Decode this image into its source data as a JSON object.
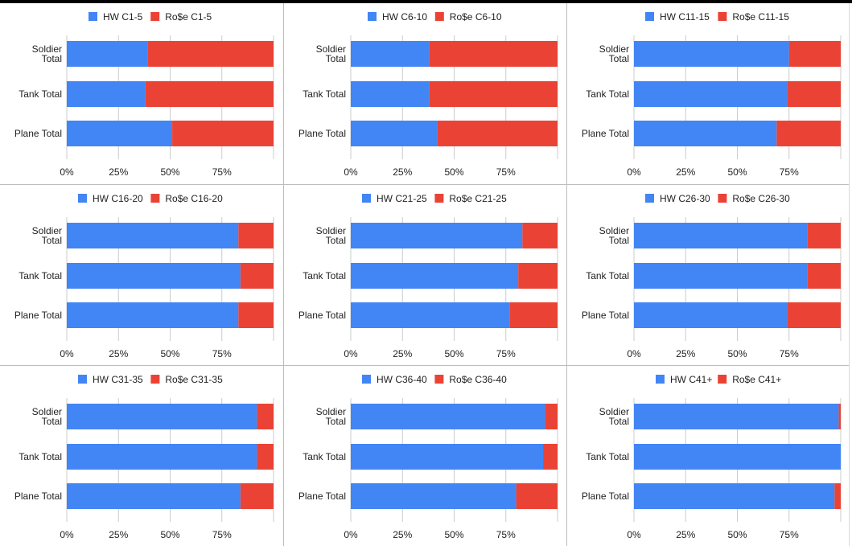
{
  "colors": {
    "hw": "#4285f4",
    "rose": "#ea4335",
    "grid": "#cccccc",
    "axis_text": "#222222"
  },
  "chart_data": [
    {
      "type": "bar",
      "orientation": "horizontal",
      "stacked": "percent",
      "legend": "top",
      "categories": [
        "Soldier Total",
        "Tank Total",
        "Plane Total"
      ],
      "xticks": [
        "0%",
        "25%",
        "50%",
        "75%"
      ],
      "series": [
        {
          "name": "HW C1-5",
          "values": [
            39,
            38,
            51
          ]
        },
        {
          "name": "Ro$e C1-5",
          "values": [
            61,
            62,
            49
          ]
        }
      ]
    },
    {
      "type": "bar",
      "orientation": "horizontal",
      "stacked": "percent",
      "legend": "top",
      "categories": [
        "Soldier Total",
        "Tank Total",
        "Plane Total"
      ],
      "xticks": [
        "0%",
        "25%",
        "50%",
        "75%"
      ],
      "series": [
        {
          "name": "HW C6-10",
          "values": [
            38,
            38,
            42
          ]
        },
        {
          "name": "Ro$e C6-10",
          "values": [
            62,
            62,
            58
          ]
        }
      ]
    },
    {
      "type": "bar",
      "orientation": "horizontal",
      "stacked": "percent",
      "legend": "top",
      "categories": [
        "Soldier Total",
        "Tank Total",
        "Plane Total"
      ],
      "xticks": [
        "0%",
        "25%",
        "50%",
        "75%"
      ],
      "series": [
        {
          "name": "HW C11-15",
          "values": [
            75,
            74,
            69
          ]
        },
        {
          "name": "Ro$e C11-15",
          "values": [
            25,
            26,
            31
          ]
        }
      ]
    },
    {
      "type": "bar",
      "orientation": "horizontal",
      "stacked": "percent",
      "legend": "top",
      "categories": [
        "Soldier Total",
        "Tank Total",
        "Plane Total"
      ],
      "xticks": [
        "0%",
        "25%",
        "50%",
        "75%"
      ],
      "series": [
        {
          "name": "HW C16-20",
          "values": [
            83,
            84,
            83
          ]
        },
        {
          "name": "Ro$e C16-20",
          "values": [
            17,
            16,
            17
          ]
        }
      ]
    },
    {
      "type": "bar",
      "orientation": "horizontal",
      "stacked": "percent",
      "legend": "top",
      "categories": [
        "Soldier Total",
        "Tank Total",
        "Plane Total"
      ],
      "xticks": [
        "0%",
        "25%",
        "50%",
        "75%"
      ],
      "series": [
        {
          "name": "HW C21-25",
          "values": [
            83,
            81,
            77
          ]
        },
        {
          "name": "Ro$e C21-25",
          "values": [
            17,
            19,
            23
          ]
        }
      ]
    },
    {
      "type": "bar",
      "orientation": "horizontal",
      "stacked": "percent",
      "legend": "top",
      "categories": [
        "Soldier Total",
        "Tank Total",
        "Plane Total"
      ],
      "xticks": [
        "0%",
        "25%",
        "50%",
        "75%"
      ],
      "series": [
        {
          "name": "HW C26-30",
          "values": [
            84,
            84,
            74
          ]
        },
        {
          "name": "Ro$e C26-30",
          "values": [
            16,
            16,
            26
          ]
        }
      ]
    },
    {
      "type": "bar",
      "orientation": "horizontal",
      "stacked": "percent",
      "legend": "top",
      "categories": [
        "Soldier Total",
        "Tank Total",
        "Plane Total"
      ],
      "xticks": [
        "0%",
        "25%",
        "50%",
        "75%"
      ],
      "series": [
        {
          "name": "HW C31-35",
          "values": [
            92,
            92,
            84
          ]
        },
        {
          "name": "Ro$e C31-35",
          "values": [
            8,
            8,
            16
          ]
        }
      ]
    },
    {
      "type": "bar",
      "orientation": "horizontal",
      "stacked": "percent",
      "legend": "top",
      "categories": [
        "Soldier Total",
        "Tank Total",
        "Plane Total"
      ],
      "xticks": [
        "0%",
        "25%",
        "50%",
        "75%"
      ],
      "series": [
        {
          "name": "HW C36-40",
          "values": [
            94,
            93,
            80
          ]
        },
        {
          "name": "Ro$e C36-40",
          "values": [
            6,
            7,
            20
          ]
        }
      ]
    },
    {
      "type": "bar",
      "orientation": "horizontal",
      "stacked": "percent",
      "legend": "top",
      "categories": [
        "Soldier Total",
        "Tank Total",
        "Plane Total"
      ],
      "xticks": [
        "0%",
        "25%",
        "50%",
        "75%"
      ],
      "series": [
        {
          "name": "HW C41+",
          "values": [
            99,
            100,
            97
          ]
        },
        {
          "name": "Ro$e C41+",
          "values": [
            1,
            0,
            3
          ]
        }
      ]
    }
  ]
}
